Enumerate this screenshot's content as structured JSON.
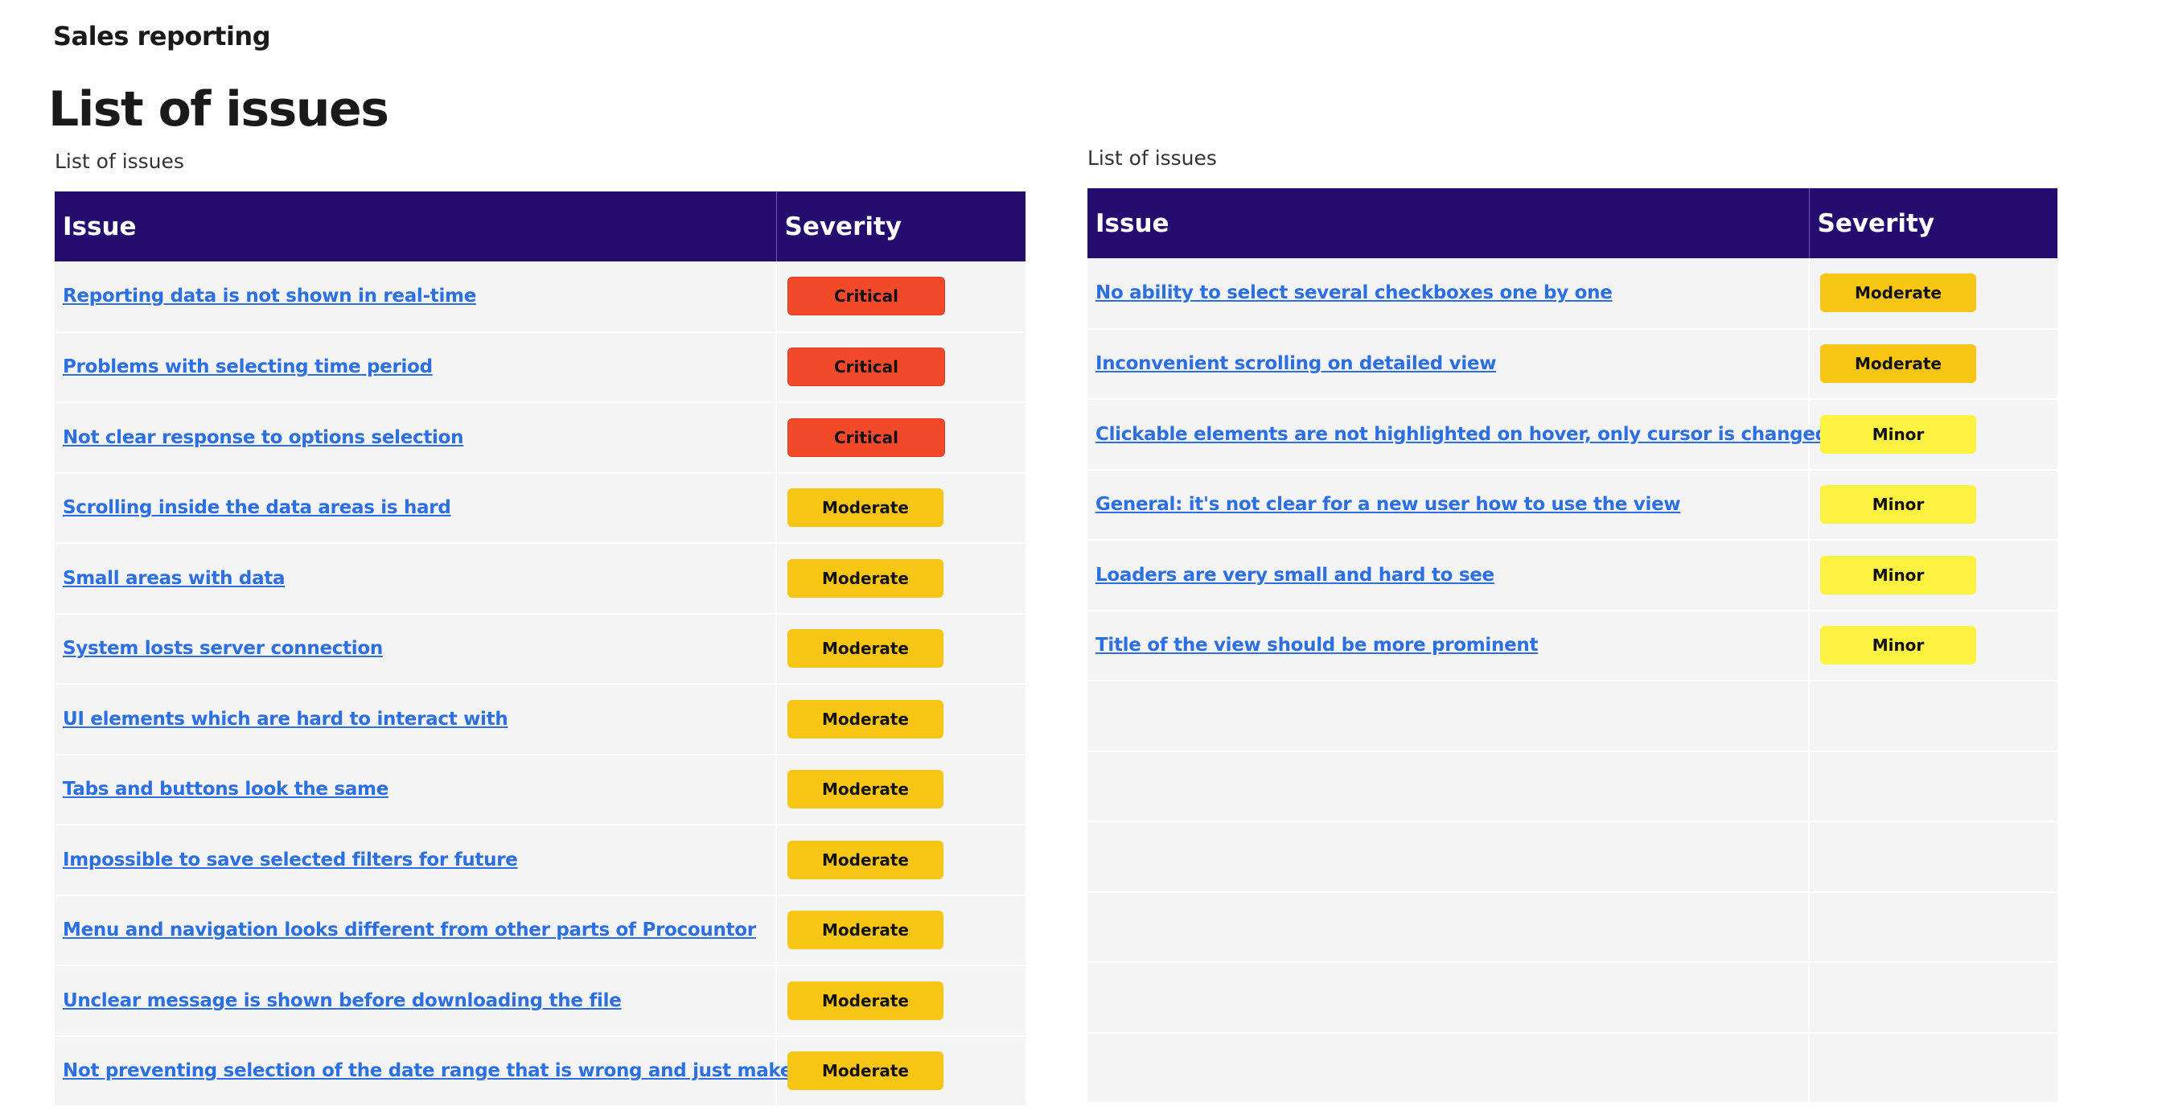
{
  "app_title": "Sales reporting",
  "page_title": "List of issues",
  "colors": {
    "header_bg": "#250d70",
    "critical": "#f2492a",
    "moderate": "#f7c514",
    "minor": "#fdf242",
    "link": "#2c6fe0"
  },
  "left_table": {
    "caption": "List of issues",
    "headers": {
      "issue": "Issue",
      "severity": "Severity"
    },
    "rows": [
      {
        "issue": "Reporting data is not shown in real-time",
        "severity": "Critical"
      },
      {
        "issue": "Problems with selecting time period",
        "severity": "Critical"
      },
      {
        "issue": "Not clear response to options selection",
        "severity": "Critical"
      },
      {
        "issue": "Scrolling inside the data areas is hard ",
        "severity": "Moderate"
      },
      {
        "issue": "Small areas with data",
        "severity": "Moderate"
      },
      {
        "issue": "System losts server connection",
        "severity": "Moderate"
      },
      {
        "issue": "UI elements which are hard to interact with",
        "severity": "Moderate"
      },
      {
        "issue": "Tabs and buttons look the same",
        "severity": "Moderate"
      },
      {
        "issue": "Impossible to save selected filters for future",
        "severity": "Moderate"
      },
      {
        "issue": "Menu and navigation looks different from other parts of Procountor",
        "severity": "Moderate"
      },
      {
        "issue": "Unclear message is shown before downloading the file",
        "severity": "Moderate"
      },
      {
        "issue": "Not preventing selection of the date range that is wrong and just makes text red",
        "severity": "Moderate"
      }
    ]
  },
  "right_table": {
    "caption": "List of issues",
    "headers": {
      "issue": "Issue",
      "severity": "Severity"
    },
    "rows": [
      {
        "issue": "No ability to select several checkboxes one by one",
        "severity": "Moderate"
      },
      {
        "issue": "Inconvenient scrolling on detailed view",
        "severity": "Moderate"
      },
      {
        "issue": "Clickable elements are not highlighted on hover, only cursor is changed",
        "severity": "Minor"
      },
      {
        "issue": "General: it's not clear for a new user how to use the view",
        "severity": "Minor"
      },
      {
        "issue": "Loaders are very small and hard to see",
        "severity": "Minor"
      },
      {
        "issue": "Title of the view should be more prominent",
        "severity": "Minor"
      },
      {
        "issue": "",
        "severity": ""
      },
      {
        "issue": "",
        "severity": ""
      },
      {
        "issue": "",
        "severity": ""
      },
      {
        "issue": "",
        "severity": ""
      },
      {
        "issue": "",
        "severity": ""
      },
      {
        "issue": "",
        "severity": ""
      }
    ]
  }
}
